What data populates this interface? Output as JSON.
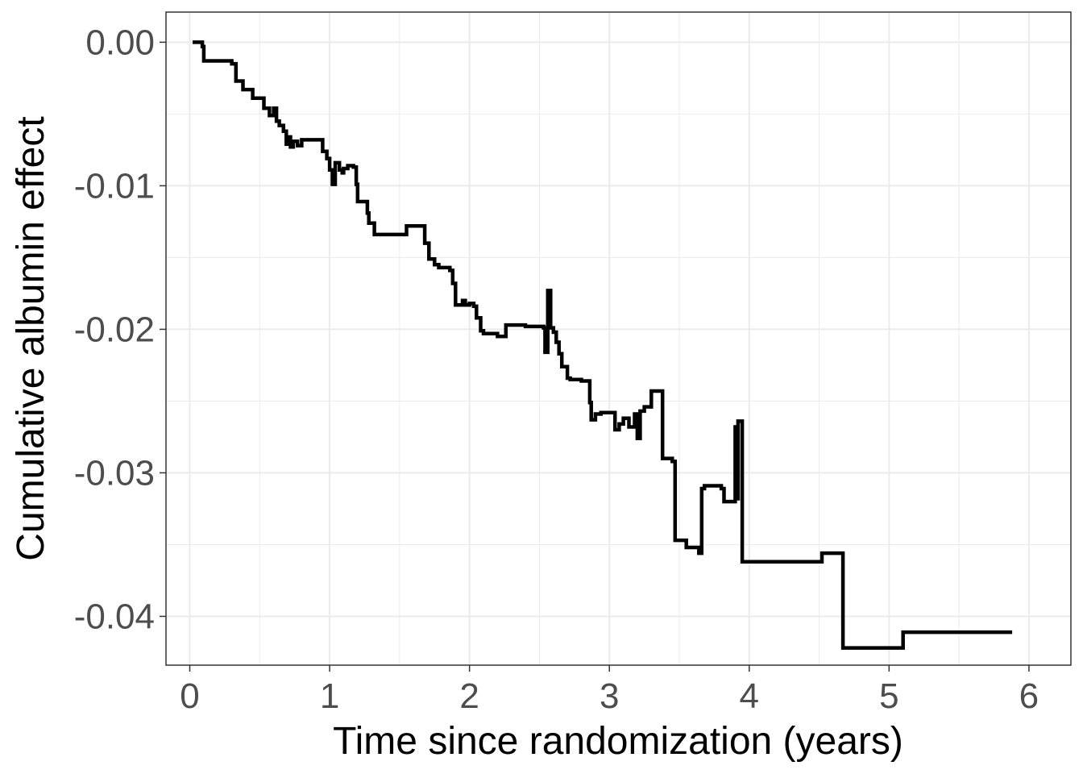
{
  "chart_data": {
    "type": "line",
    "step": true,
    "xlabel": "Time since randomization (years)",
    "ylabel": "Cumulative albumin effect",
    "xlim": [
      -0.17,
      6.3
    ],
    "ylim": [
      -0.0434,
      0.0021
    ],
    "x_ticks": [
      0,
      1,
      2,
      3,
      4,
      5,
      6
    ],
    "x_tick_labels": [
      "0",
      "1",
      "2",
      "3",
      "4",
      "5",
      "6"
    ],
    "y_ticks": [
      0.0,
      -0.01,
      -0.02,
      -0.03,
      -0.04
    ],
    "y_tick_labels": [
      "0.00",
      "-0.01",
      "-0.02",
      "-0.03",
      "-0.04"
    ],
    "grid": true,
    "line_color": "#000000",
    "grid_color": "#ebebeb",
    "series": [
      {
        "x": [
          0.02,
          0.09,
          0.1,
          0.3,
          0.33,
          0.38,
          0.45,
          0.53,
          0.57,
          0.6,
          0.62,
          0.64,
          0.67,
          0.69,
          0.71,
          0.72,
          0.74,
          0.77,
          0.8,
          0.95,
          0.98,
          1.0,
          1.02,
          1.04,
          1.07,
          1.09,
          1.1,
          1.13,
          1.17,
          1.19,
          1.2,
          1.27,
          1.28,
          1.32,
          1.55,
          1.68,
          1.71,
          1.75,
          1.78,
          1.86,
          1.88,
          1.9,
          1.95,
          1.97,
          2.0,
          2.03,
          2.05,
          2.08,
          2.1,
          2.2,
          2.26,
          2.4,
          2.53,
          2.54,
          2.56,
          2.58,
          2.6,
          2.62,
          2.64,
          2.66,
          2.7,
          2.72,
          2.8,
          2.86,
          2.87,
          2.9,
          2.94,
          3.04,
          3.07,
          3.1,
          3.14,
          3.18,
          3.2,
          3.22,
          3.25,
          3.28,
          3.3,
          3.31,
          3.32,
          3.33,
          3.38,
          3.45,
          3.47,
          3.55,
          3.64,
          3.66,
          3.68,
          3.8,
          3.82,
          3.88,
          3.9,
          3.91,
          3.92,
          3.93,
          3.94,
          3.95,
          4.03,
          4.5,
          4.52,
          4.67,
          4.7,
          5.1,
          5.15,
          5.88
        ],
        "y": [
          0.0,
          -0.0003,
          -0.0013,
          -0.0015,
          -0.0027,
          -0.0033,
          -0.0039,
          -0.0046,
          -0.0051,
          -0.0046,
          -0.0055,
          -0.0058,
          -0.0062,
          -0.0071,
          -0.0066,
          -0.0073,
          -0.0069,
          -0.0072,
          -0.0068,
          -0.0076,
          -0.0081,
          -0.0089,
          -0.0099,
          -0.0084,
          -0.0089,
          -0.0091,
          -0.0088,
          -0.0086,
          -0.0087,
          -0.0099,
          -0.0111,
          -0.0119,
          -0.0126,
          -0.0134,
          -0.0128,
          -0.014,
          -0.0151,
          -0.0155,
          -0.0157,
          -0.0159,
          -0.0168,
          -0.0183,
          -0.018,
          -0.0183,
          -0.0182,
          -0.0184,
          -0.0192,
          -0.0201,
          -0.0203,
          -0.0205,
          -0.0197,
          -0.0198,
          -0.0199,
          -0.0216,
          -0.0173,
          -0.0199,
          -0.0202,
          -0.0209,
          -0.0217,
          -0.0226,
          -0.0234,
          -0.0235,
          -0.0236,
          -0.0251,
          -0.0263,
          -0.0259,
          -0.0258,
          -0.027,
          -0.0266,
          -0.0262,
          -0.0268,
          -0.0259,
          -0.0276,
          -0.0257,
          -0.0254,
          -0.0254,
          -0.0243,
          -0.0243,
          -0.0243,
          -0.0243,
          -0.029,
          -0.0292,
          -0.0347,
          -0.0352,
          -0.0356,
          -0.0311,
          -0.0309,
          -0.0311,
          -0.032,
          -0.032,
          -0.0268,
          -0.0318,
          -0.0264,
          -0.0264,
          -0.0264,
          -0.0362,
          -0.0362,
          -0.0362,
          -0.0356,
          -0.0422,
          -0.0422,
          -0.0411,
          -0.0411,
          -0.0411
        ]
      }
    ]
  }
}
